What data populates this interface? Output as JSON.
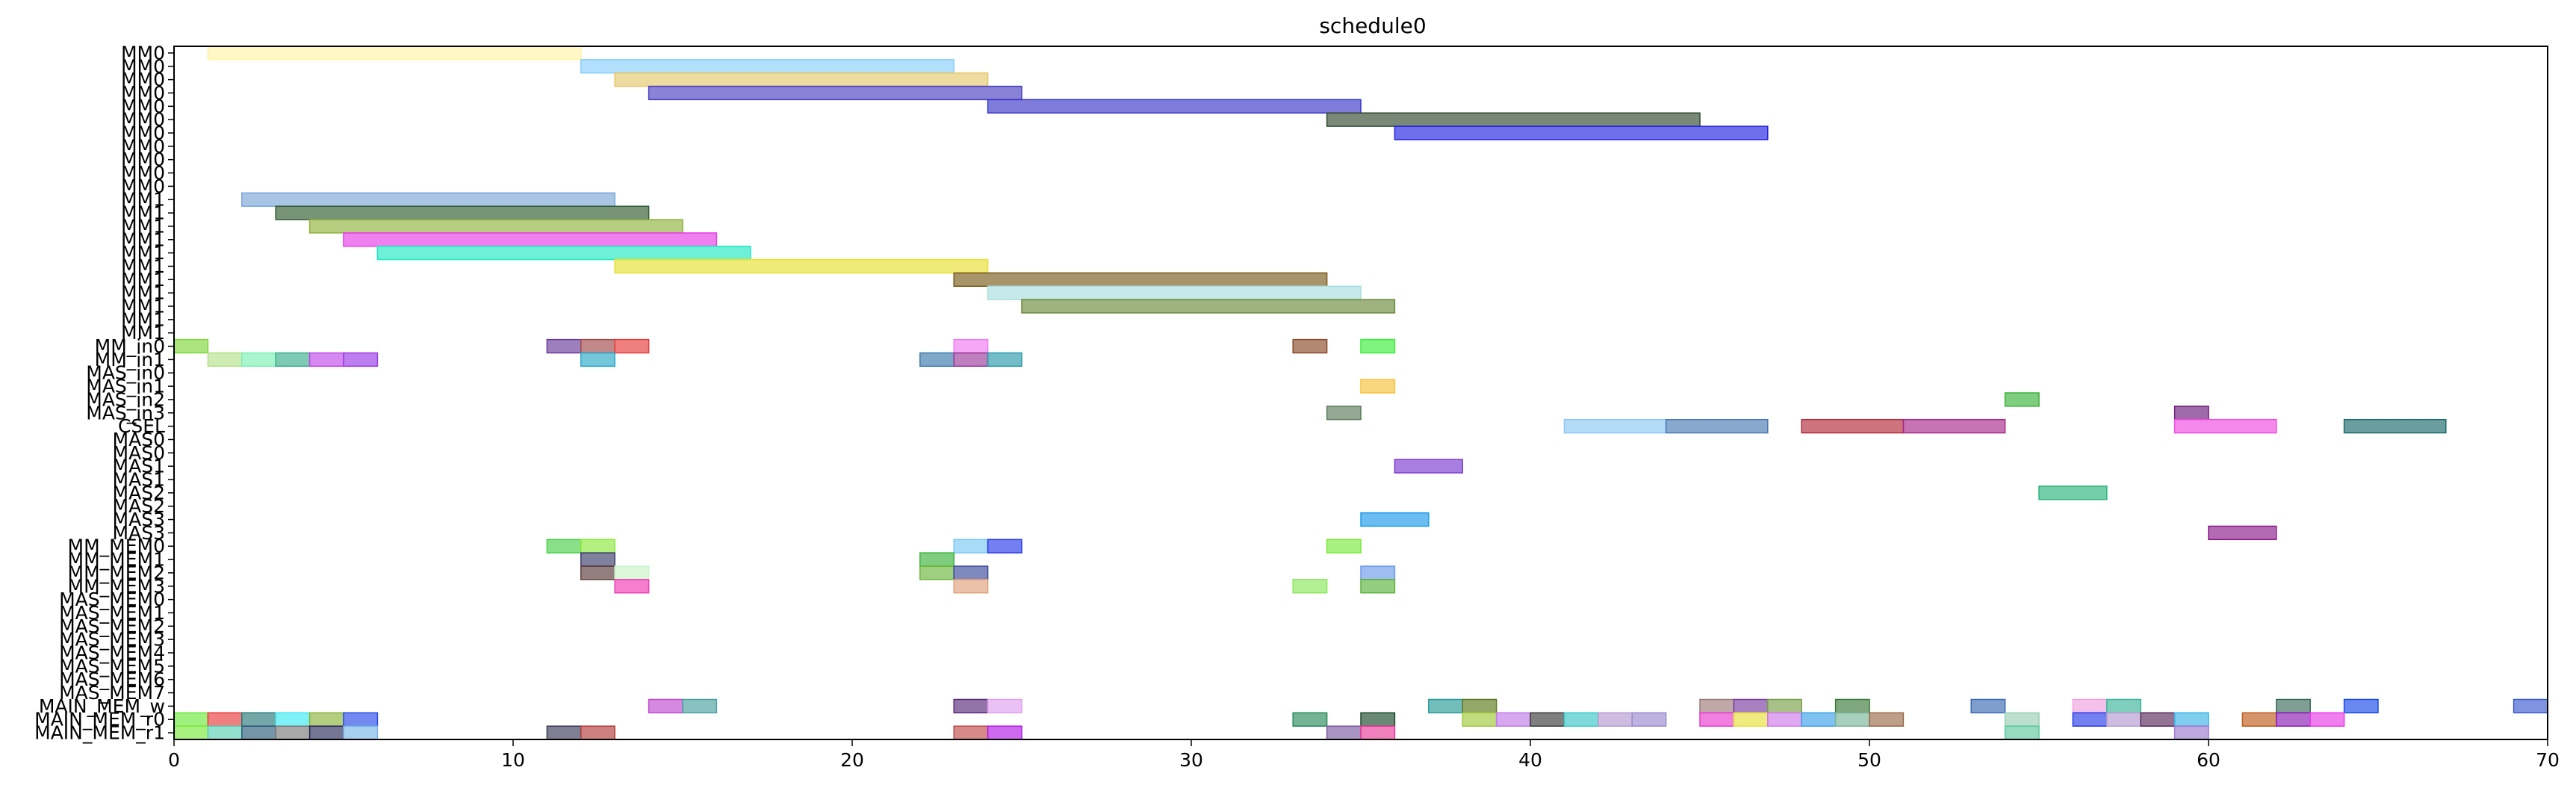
{
  "chart_data": {
    "type": "gantt",
    "title": "schedule0",
    "xlabel": "",
    "ylabel": "",
    "xlim": [
      0,
      70
    ],
    "xticks": [
      0,
      10,
      20,
      30,
      40,
      50,
      60,
      70
    ],
    "grid": false,
    "rows": [
      "MM0",
      "MM0",
      "MM0",
      "MM0",
      "MM0",
      "MM0",
      "MM0",
      "MM0",
      "MM0",
      "MM0",
      "MM0",
      "MM1",
      "MM1",
      "MM1",
      "MM1",
      "MM1",
      "MM1",
      "MM1",
      "MM1",
      "MM1",
      "MM1",
      "MM1",
      "MM_in0",
      "MM_in1",
      "MAS_in0",
      "MAS_in1",
      "MAS_in2",
      "MAS_in3",
      "CSEL",
      "MAS0",
      "MAS0",
      "MAS1",
      "MAS1",
      "MAS2",
      "MAS2",
      "MAS3",
      "MAS3",
      "MM_MEM0",
      "MM_MEM1",
      "MM_MEM2",
      "MM_MEM3",
      "MAS_MEM0",
      "MAS_MEM1",
      "MAS_MEM2",
      "MAS_MEM3",
      "MAS_MEM4",
      "MAS_MEM5",
      "MAS_MEM6",
      "MAS_MEM7",
      "MAIN_MEM_w",
      "MAIN_MEM_r0",
      "MAIN_MEM_r1"
    ],
    "tasks": [
      {
        "row": 0,
        "start": 1,
        "end": 12,
        "color": "#fff3a8"
      },
      {
        "row": 1,
        "start": 12,
        "end": 23,
        "color": "#87cefa"
      },
      {
        "row": 2,
        "start": 13,
        "end": 24,
        "color": "#e5c76b"
      },
      {
        "row": 3,
        "start": 14,
        "end": 25,
        "color": "#4a3fbf"
      },
      {
        "row": 4,
        "start": 24,
        "end": 35,
        "color": "#3a35c8"
      },
      {
        "row": 5,
        "start": 34,
        "end": 45,
        "color": "#2f4a2f"
      },
      {
        "row": 6,
        "start": 36,
        "end": 47,
        "color": "#2222e0"
      },
      {
        "row": 11,
        "start": 2,
        "end": 13,
        "color": "#7aa6d9"
      },
      {
        "row": 12,
        "start": 3,
        "end": 14,
        "color": "#2f5a2f"
      },
      {
        "row": 13,
        "start": 4,
        "end": 15,
        "color": "#8fb23c"
      },
      {
        "row": 14,
        "start": 5,
        "end": 16,
        "color": "#e83ae8"
      },
      {
        "row": 15,
        "start": 6,
        "end": 17,
        "color": "#1ee8c0"
      },
      {
        "row": 16,
        "start": 13,
        "end": 24,
        "color": "#e8e030"
      },
      {
        "row": 17,
        "start": 23,
        "end": 34,
        "color": "#7a5a1a"
      },
      {
        "row": 18,
        "start": 24,
        "end": 35,
        "color": "#a8dede"
      },
      {
        "row": 19,
        "start": 25,
        "end": 36,
        "color": "#6a8a3a"
      },
      {
        "row": 22,
        "start": 0,
        "end": 1,
        "color": "#7fd63a"
      },
      {
        "row": 22,
        "start": 11,
        "end": 12,
        "color": "#6a3a9a"
      },
      {
        "row": 22,
        "start": 12,
        "end": 13,
        "color": "#a04a4a"
      },
      {
        "row": 22,
        "start": 13,
        "end": 14,
        "color": "#e83a3a"
      },
      {
        "row": 22,
        "start": 23,
        "end": 24,
        "color": "#f07af0"
      },
      {
        "row": 22,
        "start": 33,
        "end": 34,
        "color": "#8a4a2a"
      },
      {
        "row": 22,
        "start": 35,
        "end": 36,
        "color": "#3aee3a"
      },
      {
        "row": 23,
        "start": 1,
        "end": 2,
        "color": "#b4e28a"
      },
      {
        "row": 23,
        "start": 2,
        "end": 3,
        "color": "#7af0b4"
      },
      {
        "row": 23,
        "start": 3,
        "end": 4,
        "color": "#3aae8a"
      },
      {
        "row": 23,
        "start": 4,
        "end": 5,
        "color": "#c04ae8"
      },
      {
        "row": 23,
        "start": 5,
        "end": 6,
        "color": "#9a3ae8"
      },
      {
        "row": 23,
        "start": 12,
        "end": 13,
        "color": "#2aa8c8"
      },
      {
        "row": 23,
        "start": 22,
        "end": 23,
        "color": "#3a7aaa"
      },
      {
        "row": 23,
        "start": 23,
        "end": 24,
        "color": "#9a3a9a"
      },
      {
        "row": 23,
        "start": 24,
        "end": 25,
        "color": "#2a9aaa"
      },
      {
        "row": 25,
        "start": 35,
        "end": 36,
        "color": "#f5c23a"
      },
      {
        "row": 26,
        "start": 54,
        "end": 55,
        "color": "#3ab43a"
      },
      {
        "row": 27,
        "start": 34,
        "end": 35,
        "color": "#5a7a5a"
      },
      {
        "row": 27,
        "start": 59,
        "end": 60,
        "color": "#6a1a7a"
      },
      {
        "row": 28,
        "start": 41,
        "end": 44,
        "color": "#8ac8f5"
      },
      {
        "row": 28,
        "start": 44,
        "end": 47,
        "color": "#4a7ab4"
      },
      {
        "row": 28,
        "start": 48,
        "end": 51,
        "color": "#b42a3a"
      },
      {
        "row": 28,
        "start": 51,
        "end": 54,
        "color": "#a82a8a"
      },
      {
        "row": 28,
        "start": 59,
        "end": 62,
        "color": "#f04ae0"
      },
      {
        "row": 28,
        "start": 64,
        "end": 67,
        "color": "#1a6a6a"
      },
      {
        "row": 31,
        "start": 36,
        "end": 38,
        "color": "#7a3ad0"
      },
      {
        "row": 33,
        "start": 55,
        "end": 57,
        "color": "#2ab47a"
      },
      {
        "row": 35,
        "start": 35,
        "end": 37,
        "color": "#1a9ae8"
      },
      {
        "row": 36,
        "start": 60,
        "end": 62,
        "color": "#8a1a8a"
      },
      {
        "row": 37,
        "start": 11,
        "end": 12,
        "color": "#4ad04a"
      },
      {
        "row": 37,
        "start": 12,
        "end": 13,
        "color": "#8ae83a"
      },
      {
        "row": 37,
        "start": 23,
        "end": 24,
        "color": "#7ac8f5"
      },
      {
        "row": 37,
        "start": 24,
        "end": 25,
        "color": "#2a3ae8"
      },
      {
        "row": 37,
        "start": 34,
        "end": 35,
        "color": "#7ae83a"
      },
      {
        "row": 38,
        "start": 12,
        "end": 13,
        "color": "#3a3a6a"
      },
      {
        "row": 38,
        "start": 22,
        "end": 23,
        "color": "#3ab43a"
      },
      {
        "row": 39,
        "start": 12,
        "end": 13,
        "color": "#5a3a3a"
      },
      {
        "row": 39,
        "start": 13,
        "end": 14,
        "color": "#c8f5c8"
      },
      {
        "row": 39,
        "start": 22,
        "end": 23,
        "color": "#6ab43a"
      },
      {
        "row": 39,
        "start": 23,
        "end": 24,
        "color": "#3a4a9a"
      },
      {
        "row": 39,
        "start": 35,
        "end": 36,
        "color": "#6a9ae8"
      },
      {
        "row": 40,
        "start": 13,
        "end": 14,
        "color": "#f03ab4"
      },
      {
        "row": 40,
        "start": 23,
        "end": 24,
        "color": "#e0a07a"
      },
      {
        "row": 40,
        "start": 33,
        "end": 34,
        "color": "#8ae85a"
      },
      {
        "row": 40,
        "start": 35,
        "end": 36,
        "color": "#5ab43a"
      },
      {
        "row": 49,
        "start": 14,
        "end": 15,
        "color": "#c04ad0"
      },
      {
        "row": 49,
        "start": 15,
        "end": 16,
        "color": "#4aa0a0"
      },
      {
        "row": 49,
        "start": 23,
        "end": 24,
        "color": "#5a2a7a"
      },
      {
        "row": 49,
        "start": 24,
        "end": 25,
        "color": "#e0a0f0"
      },
      {
        "row": 49,
        "start": 37,
        "end": 38,
        "color": "#2a9a9a"
      },
      {
        "row": 49,
        "start": 38,
        "end": 39,
        "color": "#5a7a1a"
      },
      {
        "row": 49,
        "start": 45,
        "end": 46,
        "color": "#a07a7a"
      },
      {
        "row": 49,
        "start": 46,
        "end": 47,
        "color": "#7a3aa0"
      },
      {
        "row": 49,
        "start": 47,
        "end": 48,
        "color": "#7aa04a"
      },
      {
        "row": 49,
        "start": 49,
        "end": 50,
        "color": "#3a7a3a"
      },
      {
        "row": 49,
        "start": 53,
        "end": 54,
        "color": "#3a6ab4"
      },
      {
        "row": 49,
        "start": 56,
        "end": 57,
        "color": "#f0a0e0"
      },
      {
        "row": 49,
        "start": 57,
        "end": 58,
        "color": "#3ab49a"
      },
      {
        "row": 49,
        "start": 62,
        "end": 63,
        "color": "#3a6a5a"
      },
      {
        "row": 49,
        "start": 64,
        "end": 65,
        "color": "#1a4ae8"
      },
      {
        "row": 49,
        "start": 69,
        "end": 70,
        "color": "#3a5ad0"
      },
      {
        "row": 50,
        "start": 0,
        "end": 1,
        "color": "#6ae83a"
      },
      {
        "row": 50,
        "start": 1,
        "end": 2,
        "color": "#e83a3a"
      },
      {
        "row": 50,
        "start": 2,
        "end": 3,
        "color": "#2a7a7a"
      },
      {
        "row": 50,
        "start": 3,
        "end": 4,
        "color": "#3ae8f0"
      },
      {
        "row": 50,
        "start": 4,
        "end": 5,
        "color": "#8ab43a"
      },
      {
        "row": 50,
        "start": 5,
        "end": 6,
        "color": "#2a4ae8"
      },
      {
        "row": 50,
        "start": 33,
        "end": 34,
        "color": "#2a8a5a"
      },
      {
        "row": 50,
        "start": 35,
        "end": 36,
        "color": "#1a4a2a"
      },
      {
        "row": 50,
        "start": 38,
        "end": 39,
        "color": "#a0c83a"
      },
      {
        "row": 50,
        "start": 39,
        "end": 40,
        "color": "#c07ae8"
      },
      {
        "row": 50,
        "start": 40,
        "end": 41,
        "color": "#3a3a3a"
      },
      {
        "row": 50,
        "start": 41,
        "end": 42,
        "color": "#3ac8c8"
      },
      {
        "row": 50,
        "start": 42,
        "end": 43,
        "color": "#b49ad0"
      },
      {
        "row": 50,
        "start": 43,
        "end": 44,
        "color": "#9a8ad0"
      },
      {
        "row": 50,
        "start": 45,
        "end": 46,
        "color": "#e83ad0"
      },
      {
        "row": 50,
        "start": 46,
        "end": 47,
        "color": "#e8e03a"
      },
      {
        "row": 50,
        "start": 47,
        "end": 48,
        "color": "#d07ae8"
      },
      {
        "row": 50,
        "start": 48,
        "end": 49,
        "color": "#3aa0e8"
      },
      {
        "row": 50,
        "start": 49,
        "end": 50,
        "color": "#7ab49a"
      },
      {
        "row": 50,
        "start": 50,
        "end": 51,
        "color": "#9a6a4a"
      },
      {
        "row": 50,
        "start": 54,
        "end": 55,
        "color": "#9ad0b4"
      },
      {
        "row": 50,
        "start": 56,
        "end": 57,
        "color": "#2a3ae8"
      },
      {
        "row": 50,
        "start": 57,
        "end": 58,
        "color": "#b49ad0"
      },
      {
        "row": 50,
        "start": 58,
        "end": 59,
        "color": "#5a2a5a"
      },
      {
        "row": 50,
        "start": 59,
        "end": 60,
        "color": "#3ab4e8"
      },
      {
        "row": 50,
        "start": 61,
        "end": 62,
        "color": "#c05a1a"
      },
      {
        "row": 50,
        "start": 62,
        "end": 63,
        "color": "#8a1ab4"
      },
      {
        "row": 50,
        "start": 63,
        "end": 64,
        "color": "#e83ae8"
      },
      {
        "row": 51,
        "start": 0,
        "end": 1,
        "color": "#7ae83a"
      },
      {
        "row": 51,
        "start": 1,
        "end": 2,
        "color": "#5ad0b4"
      },
      {
        "row": 51,
        "start": 2,
        "end": 3,
        "color": "#2a5a7a"
      },
      {
        "row": 51,
        "start": 3,
        "end": 4,
        "color": "#7a7a7a"
      },
      {
        "row": 51,
        "start": 4,
        "end": 5,
        "color": "#2a2a5a"
      },
      {
        "row": 51,
        "start": 5,
        "end": 6,
        "color": "#7ab4e8"
      },
      {
        "row": 51,
        "start": 11,
        "end": 12,
        "color": "#3a3a5a"
      },
      {
        "row": 51,
        "start": 12,
        "end": 13,
        "color": "#b43a3a"
      },
      {
        "row": 51,
        "start": 23,
        "end": 24,
        "color": "#c04a4a"
      },
      {
        "row": 51,
        "start": 24,
        "end": 25,
        "color": "#b41ae8"
      },
      {
        "row": 51,
        "start": 34,
        "end": 35,
        "color": "#7a5aa0"
      },
      {
        "row": 51,
        "start": 35,
        "end": 36,
        "color": "#e83a9a"
      },
      {
        "row": 51,
        "start": 54,
        "end": 55,
        "color": "#5ac8a0"
      },
      {
        "row": 51,
        "start": 59,
        "end": 60,
        "color": "#9a7ad0"
      }
    ]
  }
}
